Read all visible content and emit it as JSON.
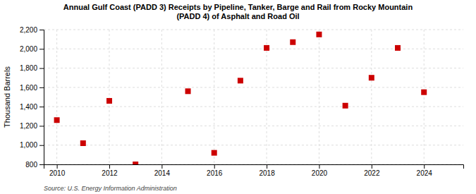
{
  "chart_data": {
    "type": "scatter",
    "title": "Annual Gulf Coast (PADD 3) Receipts by Pipeline, Tanker, Barge and Rail from Rocky Mountain\n(PADD 4) of Asphalt and Road Oil",
    "ylabel": "Thousand Barrels",
    "annotations": [
      "Source: U.S. Energy Information Administration"
    ],
    "x": [
      2010,
      2011,
      2012,
      2013,
      2015,
      2016,
      2017,
      2018,
      2019,
      2020,
      2021,
      2022,
      2023,
      2024
    ],
    "values": [
      1260,
      1020,
      1460,
      800,
      1560,
      920,
      1670,
      2010,
      2070,
      2150,
      1410,
      1700,
      2010,
      1550
    ],
    "color": "#cc0000",
    "marker": "square",
    "xlim": [
      2009.5,
      2025.5
    ],
    "xticks": [
      2010,
      2012,
      2014,
      2016,
      2018,
      2020,
      2022,
      2024
    ],
    "ylim": [
      800,
      2200
    ],
    "yticks": [
      800,
      {
        "value": 1000,
        "label": "1,000"
      },
      {
        "value": 1200,
        "label": "1,200"
      },
      {
        "value": 1400,
        "label": "1,400"
      },
      {
        "value": 1600,
        "label": "1,600"
      },
      {
        "value": 1800,
        "label": "1,800"
      },
      {
        "value": 2000,
        "label": "2,000"
      },
      {
        "value": 2200,
        "label": "2,200"
      }
    ],
    "grid": true
  }
}
